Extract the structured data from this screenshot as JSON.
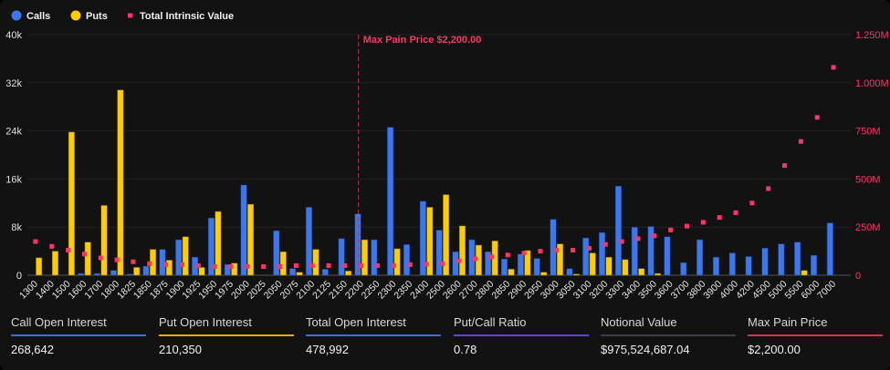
{
  "colors": {
    "calls": "#3b78f0",
    "puts": "#ffcc00",
    "tiv": "#ff3366",
    "max_pain_line": "#c0304f",
    "background": "#121212",
    "grid": "#222222"
  },
  "chart_data": {
    "type": "bar",
    "legend": {
      "placement": "top-left",
      "entries": [
        "Calls",
        "Puts",
        "Total Intrinsic Value"
      ]
    },
    "annotation": "Max Pain Price $2,200.00",
    "max_pain_category": "2200",
    "grid": true,
    "left_axis": {
      "ylim": [
        0,
        40000
      ],
      "ticks": [
        0,
        8000,
        16000,
        24000,
        32000,
        40000
      ],
      "tick_labels": [
        "0",
        "8k",
        "16k",
        "24k",
        "32k",
        "40k"
      ]
    },
    "right_axis": {
      "ylim": [
        0,
        1250
      ],
      "unit": "M",
      "ticks": [
        0,
        250,
        500,
        750,
        1000,
        1250
      ],
      "tick_labels": [
        "0",
        "250M",
        "500M",
        "750M",
        "1.000M",
        "1.250M"
      ]
    },
    "categories": [
      "1300",
      "1400",
      "1500",
      "1600",
      "1700",
      "1800",
      "1825",
      "1850",
      "1875",
      "1900",
      "1925",
      "1950",
      "1975",
      "2000",
      "2025",
      "2050",
      "2075",
      "2100",
      "2125",
      "2150",
      "2200",
      "2250",
      "2300",
      "2350",
      "2400",
      "2500",
      "2600",
      "2700",
      "2800",
      "2850",
      "2900",
      "2950",
      "3000",
      "3050",
      "3100",
      "3200",
      "3300",
      "3400",
      "3500",
      "3600",
      "3700",
      "3800",
      "3900",
      "4000",
      "4200",
      "4500",
      "5000",
      "5500",
      "6000",
      "7000"
    ],
    "series": [
      {
        "name": "Calls",
        "type": "bar",
        "axis": "left",
        "values": [
          0,
          0,
          0,
          300,
          300,
          800,
          200,
          1500,
          4300,
          5900,
          3000,
          9500,
          1800,
          15000,
          0,
          7400,
          1100,
          11300,
          1000,
          6100,
          10200,
          5900,
          24600,
          5100,
          12300,
          7500,
          3900,
          5900,
          3900,
          2700,
          3500,
          2800,
          9300,
          1100,
          6200,
          7100,
          14800,
          8000,
          8100,
          6400,
          2100,
          5900,
          3000,
          3700,
          3100,
          4500,
          5200,
          5500,
          3300,
          8700
        ]
      },
      {
        "name": "Puts",
        "type": "bar",
        "axis": "left",
        "values": [
          2900,
          4000,
          23800,
          5500,
          11600,
          30800,
          1300,
          4300,
          2500,
          6400,
          1300,
          10600,
          2000,
          11800,
          0,
          3900,
          500,
          4300,
          0,
          700,
          5900,
          0,
          4400,
          0,
          11300,
          13400,
          8200,
          5000,
          5700,
          1000,
          4100,
          500,
          5200,
          200,
          3700,
          3000,
          2600,
          1100,
          300,
          0,
          0,
          0,
          0,
          0,
          0,
          0,
          0,
          800,
          0,
          0
        ]
      },
      {
        "name": "Total Intrinsic Value",
        "type": "scatter",
        "axis": "right",
        "values": [
          175,
          150,
          130,
          110,
          90,
          80,
          70,
          60,
          55,
          55,
          50,
          45,
          45,
          45,
          45,
          45,
          50,
          50,
          50,
          50,
          50,
          50,
          50,
          55,
          57,
          60,
          75,
          85,
          95,
          105,
          115,
          125,
          130,
          130,
          140,
          160,
          175,
          190,
          205,
          235,
          255,
          275,
          300,
          325,
          375,
          450,
          570,
          695,
          820,
          1080
        ]
      }
    ]
  },
  "stats": [
    {
      "label": "Call Open Interest",
      "value": "268,642",
      "color": "#3b6fd6"
    },
    {
      "label": "Put Open Interest",
      "value": "210,350",
      "color": "#e0b000"
    },
    {
      "label": "Total Open Interest",
      "value": "478,992",
      "color": "#3b6fd6"
    },
    {
      "label": "Put/Call Ratio",
      "value": "0.78",
      "color": "#6a3fd6"
    },
    {
      "label": "Notional Value",
      "value": "$975,524,687.04",
      "color": "#3a3f48"
    },
    {
      "label": "Max Pain Price",
      "value": "$2,200.00",
      "color": "#d8304f"
    }
  ]
}
